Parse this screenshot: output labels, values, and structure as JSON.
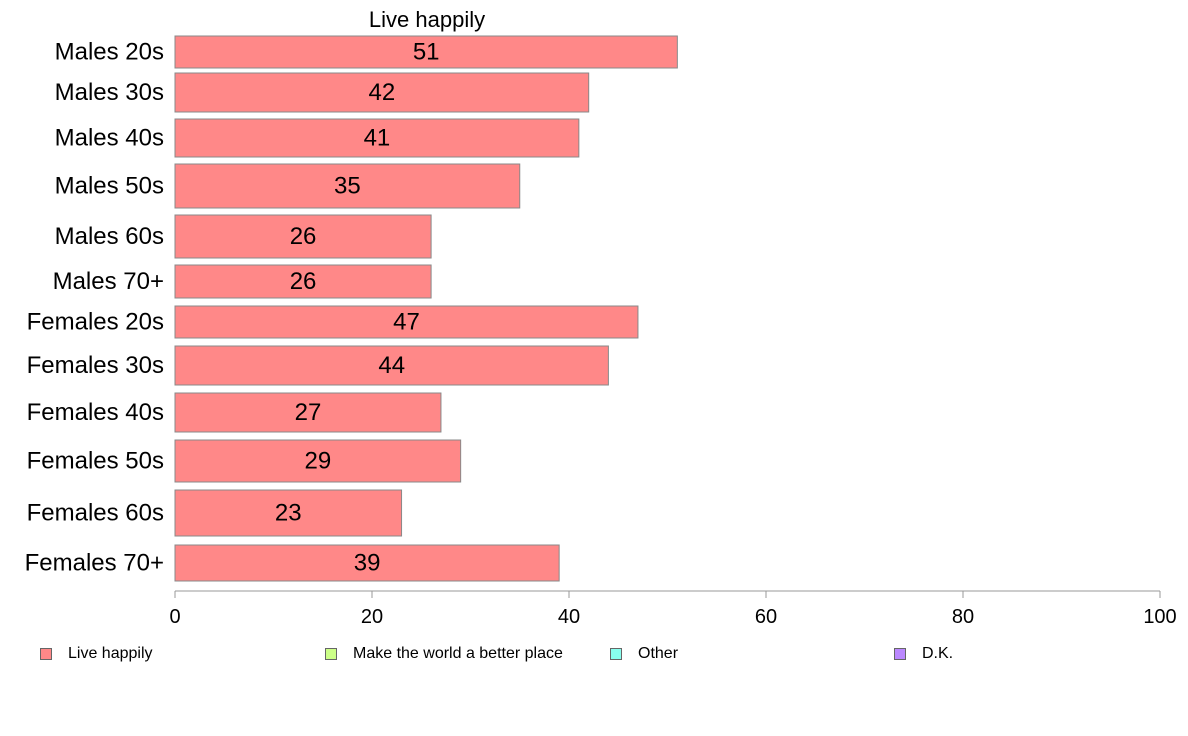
{
  "chart_data": {
    "type": "bar",
    "orientation": "horizontal",
    "title": "Live happily",
    "categories": [
      "Males 20s",
      "Males 30s",
      "Males 40s",
      "Males 50s",
      "Males 60s",
      "Males 70+",
      "Females 20s",
      "Females 30s",
      "Females 40s",
      "Females 50s",
      "Females 60s",
      "Females 70+"
    ],
    "series": [
      {
        "name": "Live happily",
        "color": "#ff8888",
        "values": [
          51,
          42,
          41,
          35,
          26,
          26,
          47,
          44,
          27,
          29,
          23,
          39
        ],
        "labels": [
          "51",
          "42",
          "41",
          "35",
          "26",
          "26",
          "47",
          "44",
          "27",
          "29",
          "23",
          "39"
        ]
      }
    ],
    "xlim": [
      0,
      100
    ],
    "xticks": [
      0,
      20,
      40,
      60,
      80,
      100
    ],
    "grid": false,
    "legend_position": "bottom"
  },
  "legend": [
    {
      "label": "Live happily",
      "color": "#ff8888"
    },
    {
      "label": "Make the world a better place",
      "color": "#ccff88"
    },
    {
      "label": "Other",
      "color": "#88ffee"
    },
    {
      "label": "D.K.",
      "color": "#bb88ff"
    }
  ]
}
